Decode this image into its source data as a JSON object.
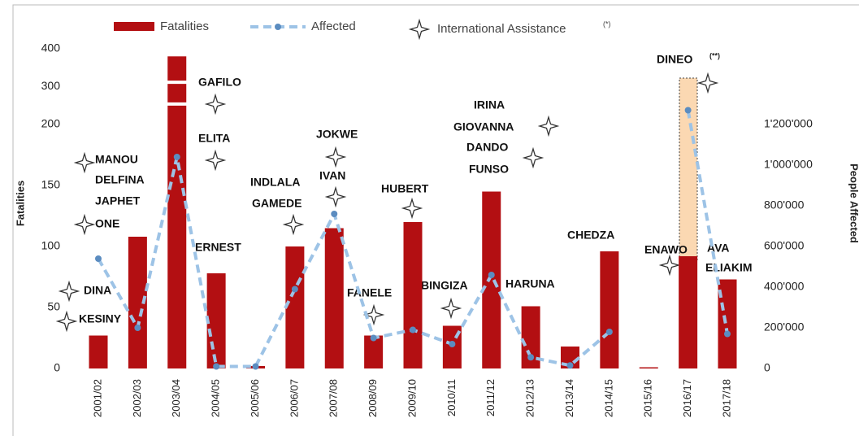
{
  "chart_data": {
    "type": "bar_line",
    "y_label": "Fatalities",
    "y2_label": "People Affected",
    "categories": [
      "2001/02",
      "2002/03",
      "2003/04",
      "2004/05",
      "2005/06",
      "2006/07",
      "2007/08",
      "2008/09",
      "2009/10",
      "2010/11",
      "2011/12",
      "2012/13",
      "2013/14",
      "2014/15",
      "2015/16",
      "2016/17",
      "2017/18"
    ],
    "series": [
      {
        "name": "Fatalities",
        "type": "bar",
        "color": "#b30f12",
        "values": [
          27,
          108,
          380,
          78,
          2,
          100,
          115,
          27,
          120,
          35,
          145,
          51,
          18,
          96,
          1,
          92,
          73
        ]
      },
      {
        "name": "Affected",
        "type": "line",
        "axis": "y2",
        "color": "#9dc3e6",
        "marker_color": "#5b8cc0",
        "values": [
          540000,
          200000,
          1040000,
          10000,
          10000,
          390000,
          760000,
          150000,
          190000,
          120000,
          460000,
          55000,
          15000,
          180000,
          null,
          1270000,
          170000
        ]
      }
    ],
    "ylim": [
      0,
      400
    ],
    "y_break": 200,
    "yticks": [
      0,
      50,
      100,
      150,
      200,
      300,
      400
    ],
    "y2lim": [
      0,
      1572000
    ],
    "y2ticks": [
      0,
      {
        "value": 200000,
        "label": "200'000"
      },
      {
        "value": 400000,
        "label": "400'000"
      },
      {
        "value": 600000,
        "label": "600'000"
      },
      {
        "value": 800000,
        "label": "800'000"
      },
      {
        "value": 1000000,
        "label": "1'000'000"
      },
      {
        "value": 1200000,
        "label": "1'200'000"
      }
    ],
    "assistance_legend": {
      "text": "International Assistance",
      "mark": "(*)"
    },
    "annotations": [
      "DINA",
      "KESINY",
      "MANOU",
      "DELFINA",
      "JAPHET",
      "ONE",
      "GAFILO",
      "ELITA",
      "ERNEST",
      "INDLALA",
      "GAMEDE",
      "JOKWE",
      "IVAN",
      "HUBERT",
      "FANELE",
      "BINGIZA",
      "IRINA",
      "GIOVANNA",
      "DANDO",
      "FUNSO",
      "HARUNA",
      "CHEDZA",
      "ENAWO",
      "AVA",
      "ELIAKIM",
      "DINEO"
    ],
    "dineo_mark": "(**)"
  }
}
